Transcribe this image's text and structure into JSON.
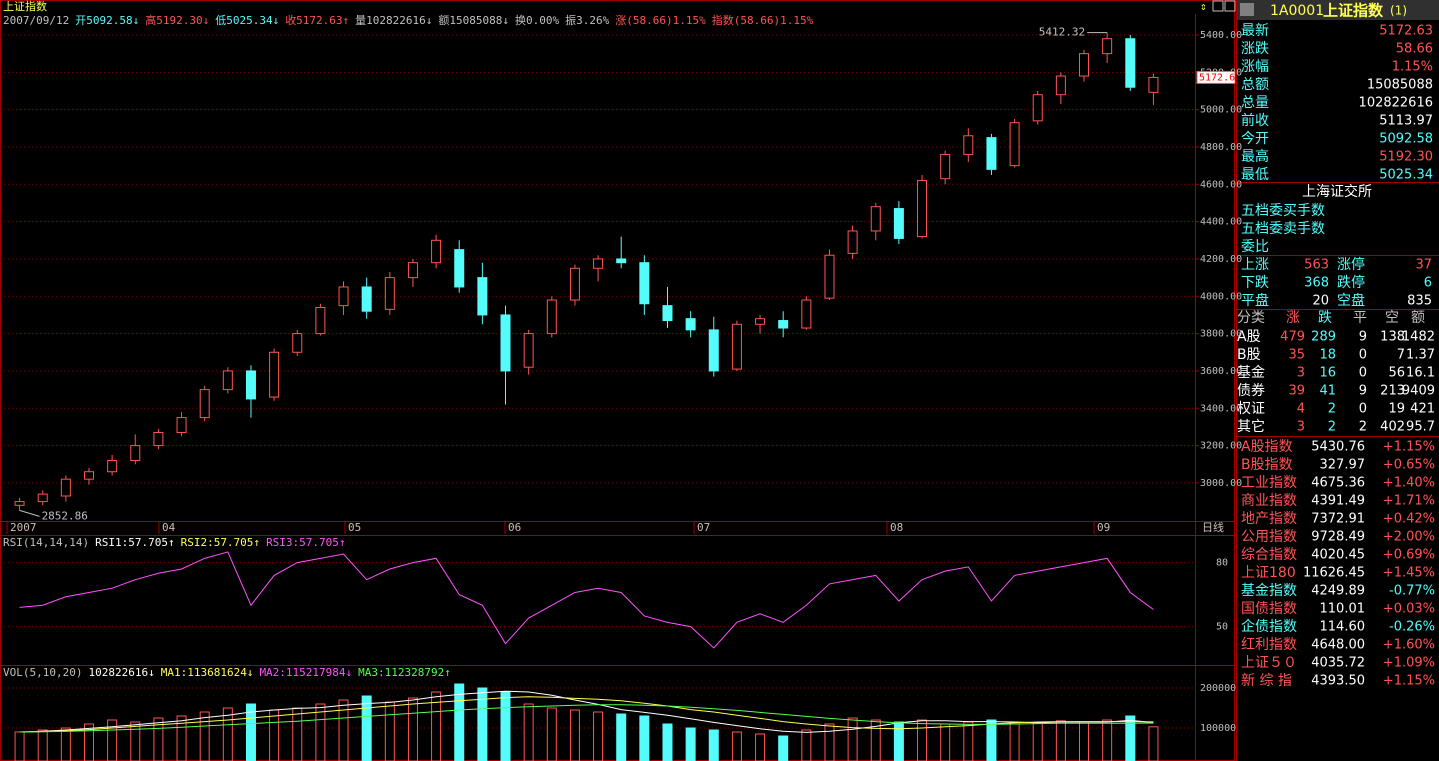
{
  "window": {
    "title": "上证指数"
  },
  "info_bar": [
    {
      "text": "2007/09/12",
      "color": "#c0c0c0"
    },
    {
      "text": "开5092.58↓",
      "color": "#54fcfc"
    },
    {
      "text": "高5192.30↓",
      "color": "#ff5454"
    },
    {
      "text": "低5025.34↓",
      "color": "#54fcfc"
    },
    {
      "text": "收5172.63↑",
      "color": "#ff5454"
    },
    {
      "text": "量102822616↓",
      "color": "#c0c0c0"
    },
    {
      "text": "额15085088↓",
      "color": "#c0c0c0"
    },
    {
      "text": "换0.00%",
      "color": "#c0c0c0"
    },
    {
      "text": "振3.26%",
      "color": "#c0c0c0"
    },
    {
      "text": "涨(58.66)1.15%",
      "color": "#ff5454"
    },
    {
      "text": "指数(58.66)1.15%",
      "color": "#ff5454"
    }
  ],
  "price_panel": {
    "up_color": "#ff5454",
    "down_color": "#54fcfc",
    "ylim": [
      2796,
      5491
    ],
    "yticks": [
      {
        "value": 3000,
        "label": "3000.00"
      },
      {
        "value": 3200,
        "label": "3200.00"
      },
      {
        "value": 3400,
        "label": "3400.00"
      },
      {
        "value": 3600,
        "label": "3600.00"
      },
      {
        "value": 3800,
        "label": "3800.00"
      },
      {
        "value": 4000,
        "label": "4000.00"
      },
      {
        "value": 4200,
        "label": "4200.00"
      },
      {
        "value": 4400,
        "label": "4400.00"
      },
      {
        "value": 4600,
        "label": "4600.00"
      },
      {
        "value": 4800,
        "label": "4800.00"
      },
      {
        "value": 5000,
        "label": "5000.00"
      },
      {
        "value": 5200,
        "label": "5200.00"
      },
      {
        "value": 5400,
        "label": "5400.00"
      }
    ],
    "open": [
      2880,
      2900,
      2930,
      3020,
      3060,
      3120,
      3200,
      3270,
      3350,
      3500,
      3600,
      3460,
      3700,
      3800,
      3950,
      4050,
      3930,
      4100,
      4180,
      4250,
      4100,
      3900,
      3620,
      3800,
      3980,
      4150,
      4200,
      4180,
      3950,
      3880,
      3820,
      3610,
      3850,
      3870,
      3830,
      3990,
      4230,
      4350,
      4470,
      4320,
      4630,
      4760,
      4850,
      4700,
      4940,
      5080,
      5180,
      5300,
      5380,
      5092.58
    ],
    "high": [
      2920,
      2960,
      3040,
      3080,
      3150,
      3260,
      3290,
      3380,
      3520,
      3620,
      3630,
      3720,
      3820,
      3960,
      4080,
      4100,
      4130,
      4200,
      4330,
      4300,
      4180,
      3950,
      3820,
      4000,
      4170,
      4220,
      4320,
      4220,
      4050,
      3920,
      3890,
      3870,
      3900,
      3920,
      4000,
      4250,
      4380,
      4500,
      4510,
      4650,
      4780,
      4900,
      4870,
      4950,
      5100,
      5200,
      5320,
      5412.32,
      5400,
      5192.3
    ],
    "low": [
      2852.86,
      2880,
      2900,
      2990,
      3040,
      3100,
      3180,
      3250,
      3330,
      3480,
      3350,
      3440,
      3680,
      3790,
      3900,
      3880,
      3900,
      4050,
      4150,
      4020,
      3850,
      3420,
      3580,
      3780,
      3950,
      4080,
      4150,
      3900,
      3830,
      3780,
      3570,
      3600,
      3800,
      3780,
      3820,
      3980,
      4200,
      4300,
      4280,
      4310,
      4600,
      4720,
      4650,
      4690,
      4920,
      5030,
      5150,
      5250,
      5100,
      5025.34
    ],
    "close": [
      2900,
      2940,
      3020,
      3060,
      3120,
      3200,
      3270,
      3350,
      3500,
      3600,
      3450,
      3700,
      3800,
      3940,
      4050,
      3920,
      4100,
      4180,
      4300,
      4050,
      3900,
      3600,
      3800,
      3980,
      4150,
      4200,
      4180,
      3960,
      3870,
      3820,
      3600,
      3850,
      3880,
      3830,
      3980,
      4220,
      4350,
      4480,
      4310,
      4620,
      4760,
      4860,
      4680,
      4930,
      5080,
      5180,
      5300,
      5380,
      5120,
      5172.63
    ],
    "high_mark": 5412.32,
    "low_mark": 2852.86,
    "last_price": {
      "value": 5172.63,
      "label": "5172.6"
    },
    "x_labels": [
      "2007",
      "04",
      "05",
      "06",
      "07",
      "08",
      "09"
    ],
    "period": "日线"
  },
  "rsi_panel": {
    "header": [
      {
        "text": "RSI(14,14,14)",
        "color": "#c0c0c0"
      },
      {
        "text": "RSI1:57.705↑",
        "color": "#ffffff"
      },
      {
        "text": "RSI2:57.705↑",
        "color": "#ffff54"
      },
      {
        "text": "RSI3:57.705↑",
        "color": "#ff54ff"
      }
    ],
    "ylim": [
      32,
      92
    ],
    "yticks": [
      50,
      80
    ],
    "color": "#ff54ff",
    "values": [
      59,
      60,
      64,
      66,
      68,
      72,
      75,
      77,
      82,
      85,
      60,
      74,
      80,
      82,
      84,
      72,
      77,
      80,
      82,
      65,
      60,
      42,
      54,
      60,
      66,
      68,
      66,
      55,
      52,
      50,
      40,
      52,
      56,
      52,
      60,
      70,
      72,
      74,
      62,
      72,
      76,
      78,
      62,
      74,
      76,
      78,
      80,
      82,
      66,
      58
    ]
  },
  "volume_panel": {
    "header": [
      {
        "text": "VOL(5,10,20)",
        "color": "#c0c0c0"
      },
      {
        "text": "102822616↓",
        "color": "#ffffff"
      },
      {
        "text": "MA1:113681624↓",
        "color": "#ffff54"
      },
      {
        "text": "MA2:115217984↓",
        "color": "#ff54ff"
      },
      {
        "text": "MA3:112328792↑",
        "color": "#54ff54"
      }
    ],
    "ylim": [
      17500,
      252500
    ],
    "yticks": [
      100000,
      200000
    ],
    "values": [
      90000,
      95000,
      100000,
      110000,
      120000,
      115000,
      125000,
      130000,
      140000,
      150000,
      160000,
      145000,
      150000,
      160000,
      170000,
      180000,
      165000,
      175000,
      190000,
      210000,
      200000,
      190000,
      160000,
      150000,
      145000,
      140000,
      135000,
      130000,
      110000,
      100000,
      95000,
      90000,
      85000,
      80000,
      95000,
      110000,
      125000,
      120000,
      115000,
      120000,
      110000,
      115000,
      120000,
      110000,
      112000,
      118000,
      115000,
      120000,
      130000,
      103000
    ],
    "lines": [
      {
        "name": "MA1",
        "color": "#ffffff",
        "values": [
          90000,
          92000,
          95000,
          99000,
          103000,
          108000,
          113000,
          118000,
          126000,
          132000,
          140000,
          145000,
          149000,
          151000,
          157000,
          161000,
          164000,
          170000,
          178000,
          184000,
          188000,
          192000,
          190000,
          182000,
          170000,
          159000,
          146000,
          139000,
          132000,
          123000,
          114000,
          106000,
          98000,
          92000,
          89000,
          92000,
          97000,
          104000,
          113000,
          118000,
          118000,
          116000,
          116000,
          115000,
          113000,
          115000,
          115000,
          115000,
          119000,
          113682
        ]
      },
      {
        "name": "MA2",
        "color": "#ffff54",
        "values": [
          90000,
          91000,
          93000,
          96000,
          100000,
          104000,
          108000,
          112000,
          116000,
          120000,
          125000,
          130000,
          135000,
          140000,
          145000,
          150000,
          155000,
          160000,
          164000,
          168000,
          172000,
          176000,
          178000,
          177000,
          174000,
          172000,
          168000,
          162000,
          155000,
          146000,
          140000,
          132000,
          124000,
          116000,
          110000,
          105000,
          101000,
          99000,
          98000,
          100000,
          103000,
          106000,
          110000,
          113000,
          115000,
          116000,
          116000,
          116000,
          116000,
          115218
        ]
      },
      {
        "name": "MA3",
        "color": "#54ff54",
        "values": [
          90000,
          90500,
          91500,
          93000,
          95000,
          97000,
          99000,
          102000,
          105000,
          108000,
          111000,
          114000,
          117000,
          121000,
          125000,
          129000,
          133000,
          137000,
          141000,
          145000,
          148000,
          151000,
          153000,
          155000,
          157000,
          158000,
          158000,
          157000,
          155000,
          152000,
          148000,
          144000,
          139000,
          134000,
          129000,
          124000,
          120000,
          116000,
          113000,
          111000,
          110000,
          109000,
          109000,
          110000,
          111000,
          112000,
          112000,
          112000,
          112000,
          112329
        ]
      }
    ]
  },
  "quote_panel": {
    "code": "1A0001",
    "name": "上证指数",
    "suffix": "(1)",
    "rows": [
      {
        "label": "最新",
        "value": "5172.63",
        "color": "#ff5454"
      },
      {
        "label": "涨跌",
        "value": "58.66",
        "color": "#ff5454"
      },
      {
        "label": "涨幅",
        "value": "1.15%",
        "color": "#ff5454"
      },
      {
        "label": "总额",
        "value": "15085088",
        "color": "#ffffff"
      },
      {
        "label": "总量",
        "value": "102822616",
        "color": "#ffffff"
      },
      {
        "label": "前收",
        "value": "5113.97",
        "color": "#ffffff"
      },
      {
        "label": "今开",
        "value": "5092.58",
        "color": "#54fcfc"
      },
      {
        "label": "最高",
        "value": "5192.30",
        "color": "#ff5454"
      },
      {
        "label": "最低",
        "value": "5025.34",
        "color": "#54fcfc"
      }
    ],
    "exchange": "上海证交所",
    "order_lines": [
      "五档委买手数",
      "五档委卖手数",
      "委比"
    ],
    "breadth": [
      [
        "上涨",
        "563",
        "涨停",
        "37"
      ],
      [
        "下跌",
        "368",
        "跌停",
        "6"
      ],
      [
        "平盘",
        "20",
        "空盘",
        "835"
      ]
    ],
    "category_header": [
      "分类",
      "涨",
      "跌",
      "平",
      "空",
      "额"
    ],
    "categories": [
      [
        "A股",
        "479",
        "289",
        "9",
        "138",
        "1482"
      ],
      [
        "B股",
        "35",
        "18",
        "0",
        "7",
        "1.37"
      ],
      [
        "基金",
        "3",
        "16",
        "0",
        "56",
        "16.1"
      ],
      [
        "债券",
        "39",
        "41",
        "9",
        "213",
        "9409"
      ],
      [
        "权证",
        "4",
        "2",
        "0",
        "19",
        "421"
      ],
      [
        "其它",
        "3",
        "2",
        "2",
        "402",
        "95.7"
      ]
    ],
    "indices": [
      {
        "name": "A股指数",
        "value": "5430.76",
        "change": "+1.15%",
        "color": "#ff5454"
      },
      {
        "name": "B股指数",
        "value": "327.97",
        "change": "+0.65%",
        "color": "#ff5454"
      },
      {
        "name": "工业指数",
        "value": "4675.36",
        "change": "+1.40%",
        "color": "#ff5454"
      },
      {
        "name": "商业指数",
        "value": "4391.49",
        "change": "+1.71%",
        "color": "#ff5454"
      },
      {
        "name": "地产指数",
        "value": "7372.91",
        "change": "+0.42%",
        "color": "#ff5454"
      },
      {
        "name": "公用指数",
        "value": "9728.49",
        "change": "+2.00%",
        "color": "#ff5454"
      },
      {
        "name": "综合指数",
        "value": "4020.45",
        "change": "+0.69%",
        "color": "#ff5454"
      },
      {
        "name": "上证180",
        "value": "11626.45",
        "change": "+1.45%",
        "color": "#ff5454"
      },
      {
        "name": "基金指数",
        "value": "4249.89",
        "change": "-0.77%",
        "color": "#54fcfc"
      },
      {
        "name": "国债指数",
        "value": "110.01",
        "change": "+0.03%",
        "color": "#ff5454"
      },
      {
        "name": "企债指数",
        "value": "114.60",
        "change": "-0.26%",
        "color": "#54fcfc"
      },
      {
        "name": "红利指数",
        "value": "4648.00",
        "change": "+1.60%",
        "color": "#ff5454"
      },
      {
        "name": "上证５０",
        "value": "4035.72",
        "change": "+1.09%",
        "color": "#ff5454"
      },
      {
        "name": "新 综 指",
        "value": "4393.50",
        "change": "+1.15%",
        "color": "#ff5454"
      }
    ]
  }
}
